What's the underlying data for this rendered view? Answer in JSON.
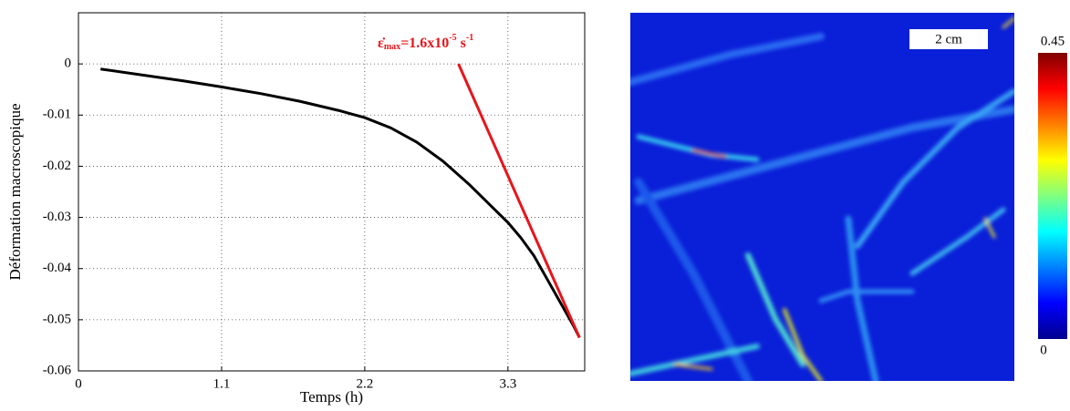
{
  "chart_data": {
    "type": "line",
    "xlabel": "Temps (h)",
    "ylabel": "Déformation macroscopique",
    "xlim": [
      0,
      3.89
    ],
    "xticks": [
      0,
      1.1,
      2.2,
      3.3
    ],
    "ylim": [
      -0.06,
      0.01
    ],
    "yticks": [
      0,
      -0.01,
      -0.02,
      -0.03,
      -0.04,
      -0.05,
      -0.06
    ],
    "grid": true,
    "series": [
      {
        "color": "#000000",
        "x": [
          0.17,
          0.5,
          0.8,
          1.1,
          1.4,
          1.7,
          2.0,
          2.2,
          2.4,
          2.6,
          2.8,
          3.0,
          3.2,
          3.3,
          3.4,
          3.5,
          3.6,
          3.7,
          3.8,
          3.85
        ],
        "values": [
          -0.001,
          -0.0022,
          -0.0033,
          -0.0045,
          -0.0058,
          -0.0073,
          -0.0091,
          -0.0105,
          -0.0125,
          -0.0153,
          -0.019,
          -0.0235,
          -0.0285,
          -0.031,
          -0.034,
          -0.0375,
          -0.042,
          -0.0465,
          -0.051,
          -0.0535
        ]
      },
      {
        "color": "#e8141b",
        "x": [
          2.92,
          3.85
        ],
        "values": [
          0,
          -0.0535
        ]
      }
    ],
    "annotation": {
      "symbol": "ε̇",
      "subscript": "max",
      "text": "=1.6x10",
      "exponent": "-5",
      "unit": " s",
      "unit_exponent": "-1",
      "color": "#e8141b"
    }
  },
  "image": {
    "scale_bar": "2 cm",
    "colorbar": {
      "ticks": [
        0.45,
        0
      ],
      "range": [
        0,
        0.45
      ]
    }
  }
}
